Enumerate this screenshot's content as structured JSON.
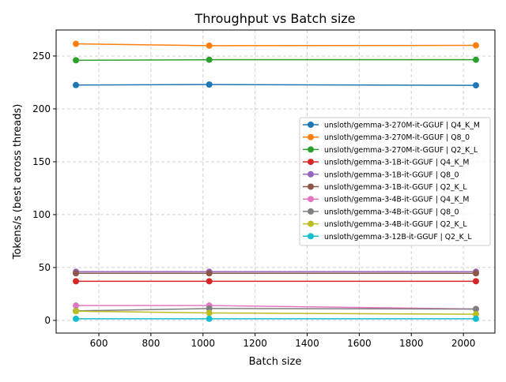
{
  "chart_data": {
    "type": "line",
    "title": "Throughput vs Batch size",
    "xlabel": "Batch size",
    "ylabel": "Tokens/s (best across threads)",
    "xlim": [
      436,
      2121
    ],
    "ylim": [
      -12,
      274.6
    ],
    "xticks": [
      600,
      800,
      1000,
      1200,
      1400,
      1600,
      1800,
      2000
    ],
    "yticks": [
      0,
      50,
      100,
      150,
      200,
      250
    ],
    "grid": true,
    "legend_position": "center-right",
    "x": [
      512,
      1024,
      2048
    ],
    "series": [
      {
        "name": "unsloth/gemma-3-270M-it-GGUF | Q4_K_M",
        "color": "#1f77b4",
        "values": [
          222.5,
          223.0,
          222.3
        ]
      },
      {
        "name": "unsloth/gemma-3-270M-it-GGUF | Q8_0",
        "color": "#ff7f0e",
        "values": [
          261.5,
          259.8,
          260.0
        ]
      },
      {
        "name": "unsloth/gemma-3-270M-it-GGUF | Q2_K_L",
        "color": "#2ca02c",
        "values": [
          246.0,
          246.5,
          246.5
        ]
      },
      {
        "name": "unsloth/gemma-3-1B-it-GGUF | Q4_K_M",
        "color": "#d62728",
        "values": [
          37.0,
          37.0,
          37.0
        ]
      },
      {
        "name": "unsloth/gemma-3-1B-it-GGUF | Q8_0",
        "color": "#9467bd",
        "values": [
          46.0,
          46.0,
          46.0
        ]
      },
      {
        "name": "unsloth/gemma-3-1B-it-GGUF | Q2_K_L",
        "color": "#8c564b",
        "values": [
          44.5,
          44.5,
          44.5
        ]
      },
      {
        "name": "unsloth/gemma-3-4B-it-GGUF | Q4_K_M",
        "color": "#e377c2",
        "values": [
          14.0,
          14.0,
          10.8
        ]
      },
      {
        "name": "unsloth/gemma-3-4B-it-GGUF | Q8_0",
        "color": "#7f7f7f",
        "values": [
          9.0,
          11.2,
          10.7
        ]
      },
      {
        "name": "unsloth/gemma-3-4B-it-GGUF | Q2_K_L",
        "color": "#bcbd22",
        "values": [
          8.7,
          7.0,
          5.8
        ]
      },
      {
        "name": "unsloth/gemma-3-12B-it-GGUF | Q2_K_L",
        "color": "#17becf",
        "values": [
          1.5,
          1.5,
          1.5
        ]
      }
    ]
  }
}
